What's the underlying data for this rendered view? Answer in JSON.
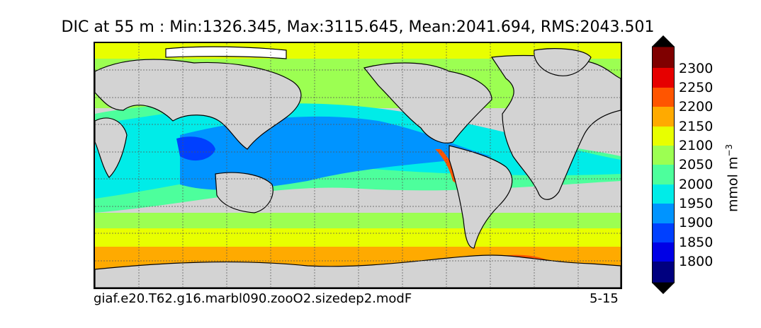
{
  "title": "DIC at 55 m : Min:1326.345, Max:3115.645, Mean:2041.694, RMS:2043.501",
  "caption_left": "giaf.e20.T62.g16.marbl090.zooO2.sizedep2.modF",
  "caption_right": "5-15",
  "colorbar": {
    "levels": [
      "2300",
      "2250",
      "2200",
      "2150",
      "2100",
      "2050",
      "2000",
      "1950",
      "1900",
      "1850",
      "1800"
    ],
    "units_base": "mmol m",
    "units_exp": "−3",
    "colors": {
      "c1800": "#00007f",
      "c1850": "#0000e6",
      "c1900": "#0040ff",
      "c1950": "#0094ff",
      "c2000": "#00ece8",
      "c2050": "#4dff9c",
      "c2100": "#9cff52",
      "c2150": "#e8ff00",
      "c2200": "#ffaa00",
      "c2250": "#ff5500",
      "c2300": "#e60000",
      "c2350": "#7f0000"
    }
  },
  "colors": {
    "land": "#d3d3d3",
    "ice": "#ffffff"
  }
}
